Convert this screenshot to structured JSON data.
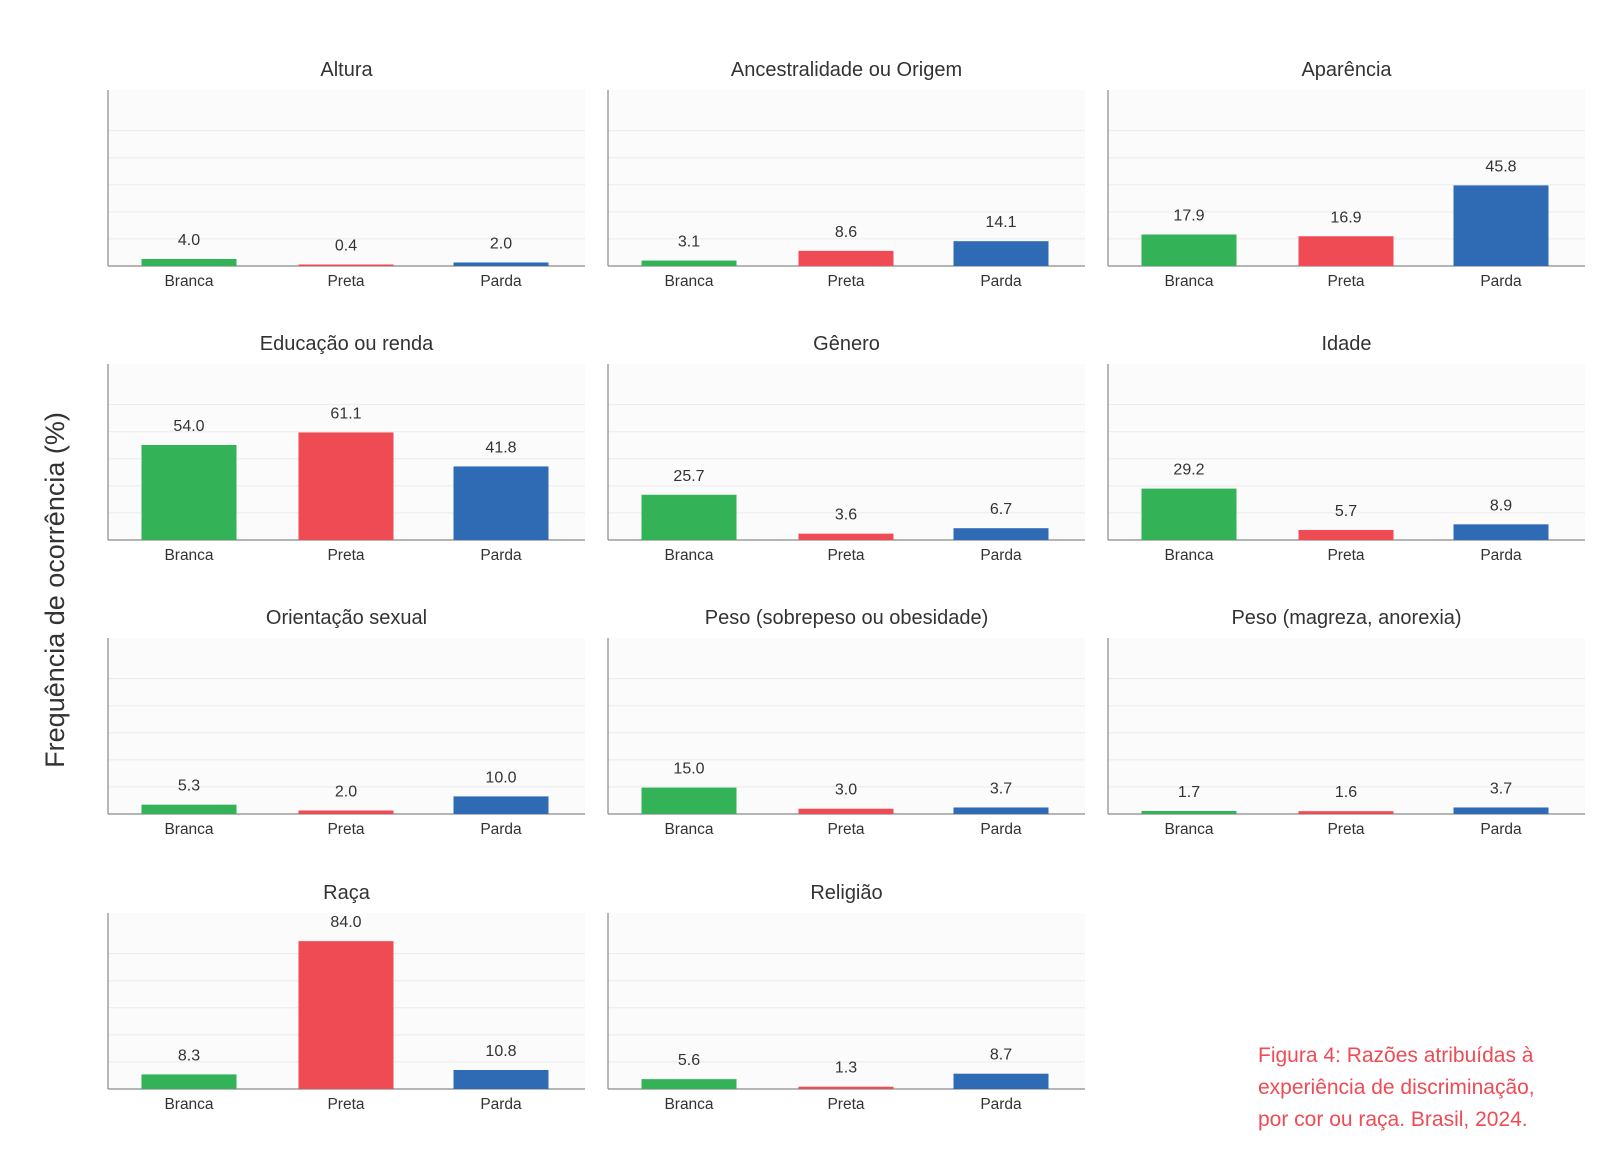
{
  "ylabel": "Frequência de ocorrência (%)",
  "caption_lines": [
    "Figura 4: Razões atribuídas à",
    "experiência de discriminação,",
    "por cor ou raça. Brasil, 2024."
  ],
  "colors": {
    "Branca": "#34b257",
    "Preta": "#ef4b55",
    "Parda": "#2f6ab5"
  },
  "chart_data": {
    "type": "bar",
    "categories": [
      "Branca",
      "Preta",
      "Parda"
    ],
    "ylim": [
      0,
      100
    ],
    "grid": true,
    "panels": [
      {
        "title": "Altura",
        "values": [
          4.0,
          0.4,
          2.0
        ],
        "labels": [
          "4.0",
          "0.4",
          "2.0"
        ]
      },
      {
        "title": "Ancestralidade ou Origem",
        "values": [
          3.1,
          8.6,
          14.1
        ],
        "labels": [
          "3.1",
          "8.6",
          "14.1"
        ]
      },
      {
        "title": "Aparência",
        "values": [
          17.9,
          16.9,
          45.8
        ],
        "labels": [
          "17.9",
          "16.9",
          "45.8"
        ]
      },
      {
        "title": "Educação ou renda",
        "values": [
          54.0,
          61.1,
          41.8
        ],
        "labels": [
          "54.0",
          "61.1",
          "41.8"
        ]
      },
      {
        "title": "Gênero",
        "values": [
          25.7,
          3.6,
          6.7
        ],
        "labels": [
          "25.7",
          "3.6",
          "6.7"
        ]
      },
      {
        "title": "Idade",
        "values": [
          29.2,
          5.7,
          8.9
        ],
        "labels": [
          "29.2",
          "5.7",
          "8.9"
        ]
      },
      {
        "title": "Orientação sexual",
        "values": [
          5.3,
          2.0,
          10.0
        ],
        "labels": [
          "5.3",
          "2.0",
          "10.0"
        ]
      },
      {
        "title": "Peso (sobrepeso ou obesidade)",
        "values": [
          15.0,
          3.0,
          3.7
        ],
        "labels": [
          "15.0",
          "3.0",
          "3.7"
        ]
      },
      {
        "title": "Peso (magreza, anorexia)",
        "values": [
          1.7,
          1.6,
          3.7
        ],
        "labels": [
          "1.7",
          "1.6",
          "3.7"
        ]
      },
      {
        "title": "Raça",
        "values": [
          8.3,
          84.0,
          10.8
        ],
        "labels": [
          "8.3",
          "84.0",
          "10.8"
        ]
      },
      {
        "title": "Religião",
        "values": [
          5.6,
          1.3,
          8.7
        ],
        "labels": [
          "5.6",
          "1.3",
          "8.7"
        ]
      }
    ]
  }
}
